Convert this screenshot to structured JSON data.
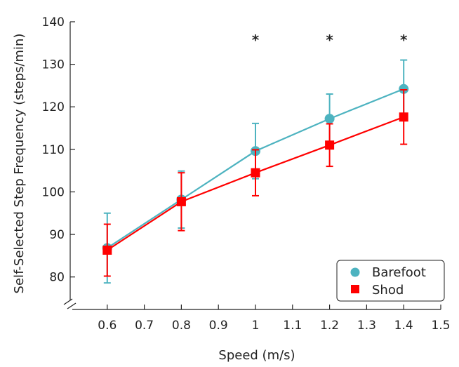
{
  "chart_data": {
    "type": "line",
    "xlabel": "Speed (m/s)",
    "ylabel": "Self-Selected Step Frequency (steps/min)",
    "xlim": [
      0.5,
      1.5
    ],
    "ylim": [
      75,
      140
    ],
    "x_ticks": [
      0.6,
      0.7,
      0.8,
      0.9,
      1,
      1.1,
      1.2,
      1.3,
      1.4,
      1.5
    ],
    "x_tick_labels": [
      "0.6",
      "0.7",
      "0.8",
      "0.9",
      "1",
      "1.1",
      "1.2",
      "1.3",
      "1.4",
      "1.5"
    ],
    "y_ticks": [
      80,
      90,
      100,
      110,
      120,
      130,
      140
    ],
    "y_tick_labels": [
      "80",
      "90",
      "100",
      "110",
      "120",
      "130",
      "140"
    ],
    "y_axis_break": true,
    "grid": false,
    "legend_position": "bottom-right",
    "series": [
      {
        "name": "Barefoot",
        "marker": "circle",
        "color": "#4db3c0",
        "x": [
          0.6,
          0.8,
          1.0,
          1.2,
          1.4
        ],
        "y": [
          86.8,
          98.2,
          109.6,
          117.2,
          124.2
        ],
        "error": [
          8.2,
          6.7,
          6.5,
          5.8,
          6.8
        ]
      },
      {
        "name": "Shod",
        "marker": "square",
        "color": "#ff0000",
        "x": [
          0.6,
          0.8,
          1.0,
          1.2,
          1.4
        ],
        "y": [
          86.3,
          97.7,
          104.5,
          111.0,
          117.6
        ],
        "error": [
          6.1,
          6.8,
          5.4,
          5.0,
          6.4
        ]
      }
    ],
    "annotations": [
      {
        "text": "*",
        "x": 1.0,
        "y": 136.5
      },
      {
        "text": "*",
        "x": 1.2,
        "y": 136.5
      },
      {
        "text": "*",
        "x": 1.4,
        "y": 136.5
      }
    ]
  }
}
